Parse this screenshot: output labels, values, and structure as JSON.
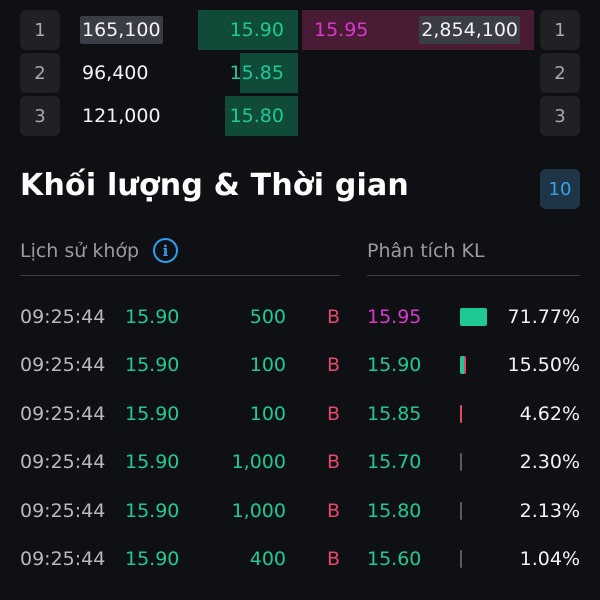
{
  "colors": {
    "background": "#0f1013",
    "up_green": "#1fc995",
    "sell_red": "#e8456a",
    "ref_purple": "#d838d0",
    "accent_blue": "#2d9ef0"
  },
  "order_book": [
    {
      "rank": "1",
      "bid_volume": "165,100",
      "bid_price": "15.90",
      "bid_fill": 1.0,
      "ask_price": "15.95",
      "ask_volume": "2,854,100",
      "rank_right": "1"
    },
    {
      "rank": "2",
      "bid_volume": "96,400",
      "bid_price": "15.85",
      "bid_fill": 0.58,
      "ask_price": "",
      "ask_volume": "",
      "rank_right": "2"
    },
    {
      "rank": "3",
      "bid_volume": "121,000",
      "bid_price": "15.80",
      "bid_fill": 0.73,
      "ask_price": "",
      "ask_volume": "",
      "rank_right": "3"
    }
  ],
  "section": {
    "title": "Khối lượng & Thời gian",
    "count_button": "10"
  },
  "tabs": {
    "history_label": "Lịch sử khớp",
    "info_icon": "info-icon",
    "info_glyph": "i",
    "analysis_label": "Phân tích KL"
  },
  "trades": [
    {
      "time": "09:25:44",
      "price": "15.90",
      "volume": "500",
      "side": "B"
    },
    {
      "time": "09:25:44",
      "price": "15.90",
      "volume": "100",
      "side": "B"
    },
    {
      "time": "09:25:44",
      "price": "15.90",
      "volume": "100",
      "side": "B"
    },
    {
      "time": "09:25:44",
      "price": "15.90",
      "volume": "1,000",
      "side": "B"
    },
    {
      "time": "09:25:44",
      "price": "15.90",
      "volume": "1,000",
      "side": "B"
    },
    {
      "time": "09:25:44",
      "price": "15.90",
      "volume": "400",
      "side": "B"
    }
  ],
  "analysis": [
    {
      "price": "15.95",
      "price_color": "#d838d0",
      "percent": "71.77%",
      "share": 0.7177,
      "buy_ratio": 1.0,
      "sell_ratio": 0.0
    },
    {
      "price": "15.90",
      "price_color": "#1fc995",
      "percent": "15.50%",
      "share": 0.155,
      "buy_ratio": 0.6,
      "sell_ratio": 0.4
    },
    {
      "price": "15.85",
      "price_color": "#1fc995",
      "percent": "4.62%",
      "share": 0.0462,
      "buy_ratio": 0.0,
      "sell_ratio": 1.0
    },
    {
      "price": "15.70",
      "price_color": "#1fc995",
      "percent": "2.30%",
      "share": 0.023,
      "buy_ratio": 0.0,
      "sell_ratio": 0.0
    },
    {
      "price": "15.80",
      "price_color": "#1fc995",
      "percent": "2.13%",
      "share": 0.0213,
      "buy_ratio": 0.0,
      "sell_ratio": 0.0
    },
    {
      "price": "15.60",
      "price_color": "#1fc995",
      "percent": "1.04%",
      "share": 0.0104,
      "buy_ratio": 0.0,
      "sell_ratio": 0.0
    }
  ]
}
